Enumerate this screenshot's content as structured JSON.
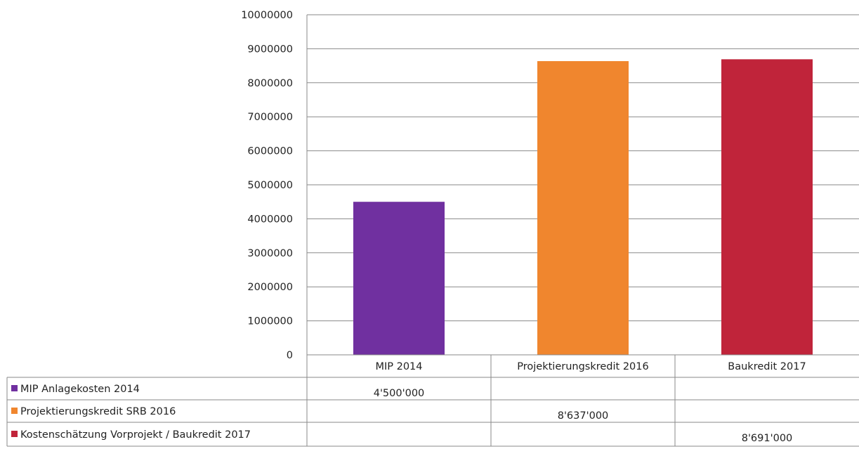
{
  "chart_data": {
    "type": "bar",
    "categories": [
      "MIP 2014",
      "Projektierungskredit 2016",
      "Baukredit 2017"
    ],
    "ylim": [
      0,
      10000000
    ],
    "yticks": [
      "0",
      "1000000",
      "2000000",
      "3000000",
      "4000000",
      "5000000",
      "6000000",
      "7000000",
      "8000000",
      "9000000",
      "10000000"
    ],
    "grid": true,
    "legend_placement": "data-table-left",
    "series": [
      {
        "name": "MIP Anlagekosten 2014",
        "color": "#7030a0",
        "values": [
          4500000,
          null,
          null
        ],
        "table_values": [
          "4'500'000",
          "",
          ""
        ]
      },
      {
        "name": "Projektierungskredit SRB 2016",
        "color": "#f0862e",
        "values": [
          null,
          8637000,
          null
        ],
        "table_values": [
          "",
          "8'637'000",
          ""
        ]
      },
      {
        "name": "Kostenschätzung Vorprojekt / Baukredit 2017",
        "color": "#c0243a",
        "values": [
          null,
          null,
          8691000
        ],
        "table_values": [
          "",
          "",
          "8'691'000"
        ]
      }
    ]
  }
}
